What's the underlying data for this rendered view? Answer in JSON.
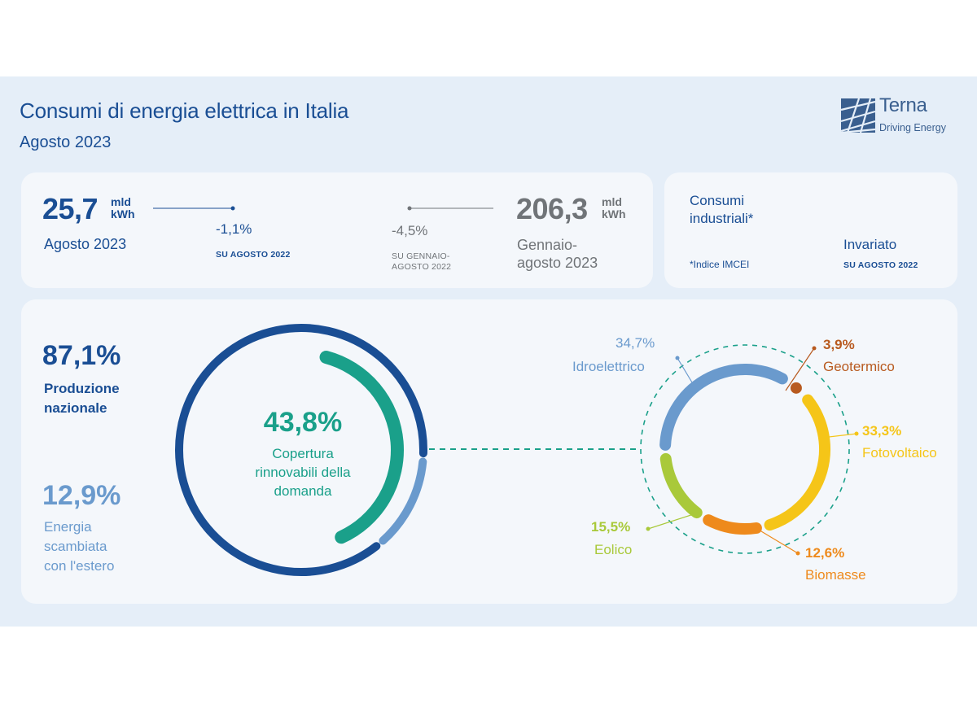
{
  "header": {
    "title": "Consumi di energia elettrica in Italia",
    "subtitle": "Agosto 2023",
    "logo_word": "Terna",
    "logo_tagline": "Driving Energy"
  },
  "summary": {
    "month": {
      "value": "25,7",
      "unit_line1": "mld",
      "unit_line2": "kWh",
      "label": "Agosto 2023",
      "change": "-1,1%",
      "change_ref": "SU AGOSTO 2022"
    },
    "ytd": {
      "value": "206,3",
      "unit_line1": "mld",
      "unit_line2": "kWh",
      "label_line1": "Gennaio-",
      "label_line2": "agosto 2023",
      "change": "-4,5%",
      "change_ref_line1": "SU GENNAIO-",
      "change_ref_line2": "AGOSTO 2022"
    },
    "industrial": {
      "label_line1": "Consumi",
      "label_line2": "industriali*",
      "footnote": "*Indice IMCEI",
      "status": "Invariato",
      "status_ref": "SU AGOSTO 2022"
    }
  },
  "chart_data": [
    {
      "type": "pie",
      "categories": [
        "Produzione nazionale",
        "Energia scambiata con l'estero"
      ],
      "values": [
        87.1,
        12.9
      ],
      "labels": [
        "87,1%",
        "12,9%"
      ],
      "label_lines": [
        [
          "Produzione",
          "nazionale"
        ],
        [
          "Energia",
          "scambiata",
          "con l'estero"
        ]
      ],
      "inner_value": 43.8,
      "inner_label": "43,8%",
      "inner_text_lines": [
        "Copertura",
        "rinnovabili della",
        "domanda"
      ]
    },
    {
      "type": "pie",
      "categories": [
        "Idroelettrico",
        "Geotermico",
        "Fotovoltaico",
        "Biomasse",
        "Eolico"
      ],
      "values": [
        34.7,
        3.9,
        33.3,
        12.6,
        15.5
      ],
      "labels": [
        "34,7%",
        "3,9%",
        "33,3%",
        "12,6%",
        "15,5%"
      ]
    }
  ],
  "colors": {
    "dark_blue": "#1a4e94",
    "light_blue": "#6a9acd",
    "teal": "#1aa08a",
    "hydro": "#6a9acd",
    "geo": "#b85a1f",
    "solar": "#f5c518",
    "bio": "#ee8a1c",
    "wind": "#a9c93a"
  }
}
